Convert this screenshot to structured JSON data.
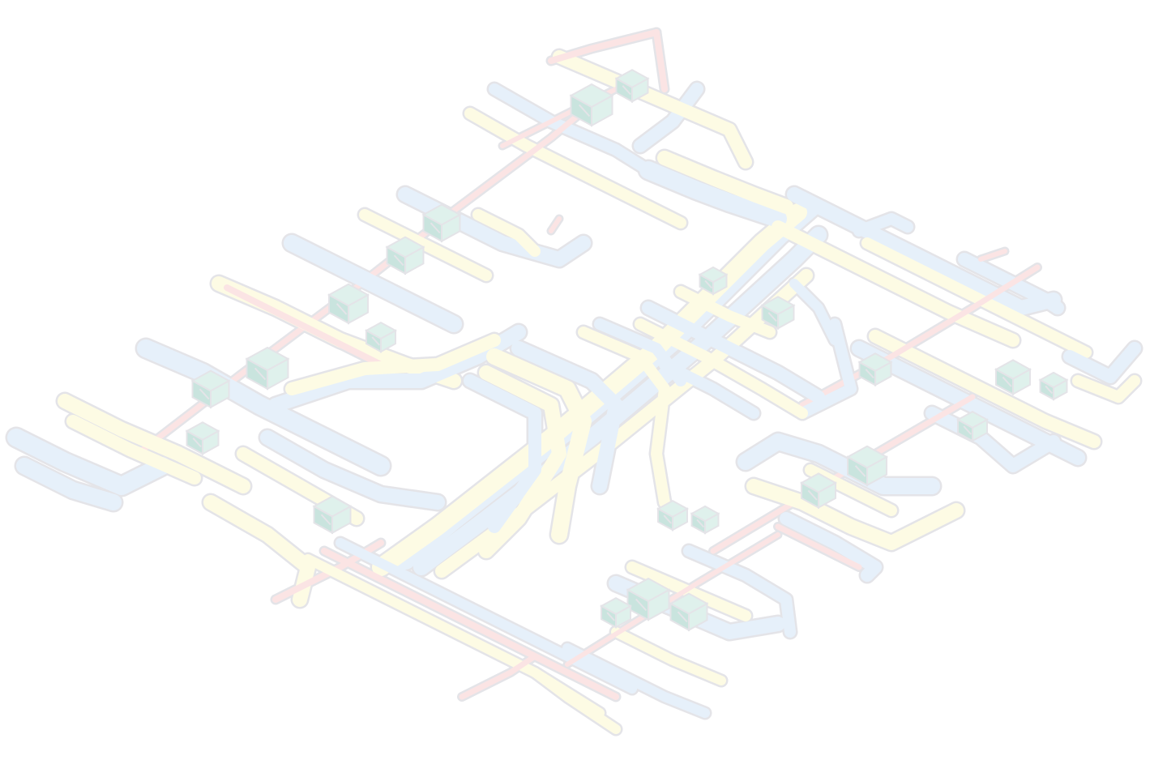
{
  "diagram": {
    "kind": "isometric-pipe-network",
    "palette": {
      "background": "#ffffff",
      "outline": "#e4e4e8",
      "blue": "#e6f0fa",
      "yellow": "#fdfbe4",
      "red": "#fbe4e4",
      "equipment": "#dff1ec",
      "equipment_dark": "#c9e4de"
    },
    "pipe_colors": [
      "blue",
      "yellow",
      "red"
    ],
    "equipment_icon": "hvac-unit-icon"
  }
}
